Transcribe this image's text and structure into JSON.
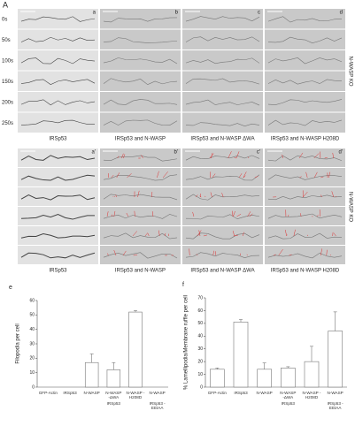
{
  "panel_label": "A",
  "top_panel": {
    "time_labels": [
      "0s",
      "50s",
      "100s",
      "150s",
      "200s",
      "250s"
    ],
    "column_letters": [
      "a",
      "b",
      "c",
      "d"
    ],
    "side_label": "N-WASP KO",
    "captions": [
      "IRSp53",
      "IRSp53 and N-WASP",
      "IRSp53 and N-WASP ΔWA",
      "IRSp53 and N-WASP H208D"
    ]
  },
  "bottom_panel": {
    "column_letters": [
      "a'",
      "b'",
      "c'",
      "d'"
    ],
    "side_label": "N-WASP KO",
    "captions": [
      "IRSp53",
      "IRSp53 and N-WASP",
      "IRSp53 and N-WASP ΔWA",
      "IRSp53 and N-WASP H208D"
    ]
  },
  "chart_data": [
    {
      "type": "bar",
      "panel_letter": "e",
      "y_label": "Filopodia per cell",
      "categories": [
        "GFP-Actin",
        "IRSp53",
        "N-WASP",
        "N-WASP -ΔWA",
        "N-WASP -H208D",
        "N-WASP"
      ],
      "sublabels": [
        "IRSp53",
        "IRSp53 -EEtAA"
      ],
      "values": [
        0,
        0,
        17,
        12,
        52,
        0
      ],
      "errors": [
        0,
        0,
        6,
        5,
        1,
        0
      ],
      "ylim": [
        0,
        60
      ],
      "yticks": [
        0,
        10,
        20,
        30,
        40,
        50,
        60
      ],
      "color": "#ffffff"
    },
    {
      "type": "bar",
      "panel_letter": "f",
      "y_label": "% Lamellipodia/Membrane ruffle per cell",
      "categories": [
        "GFP-Actin",
        "IRSp53",
        "N-WASP",
        "N-WASP -ΔWA",
        "N-WASP -H208D",
        "N-WASP"
      ],
      "sublabels": [
        "IRSp53",
        "IRSp53 -EEtAA"
      ],
      "values": [
        14,
        51,
        14,
        15,
        20,
        44
      ],
      "errors": [
        1,
        2,
        5,
        1,
        12,
        15
      ],
      "ylim": [
        0,
        70
      ],
      "yticks": [
        0,
        10,
        20,
        30,
        40,
        50,
        60,
        70
      ],
      "color": "#ffffff"
    }
  ]
}
